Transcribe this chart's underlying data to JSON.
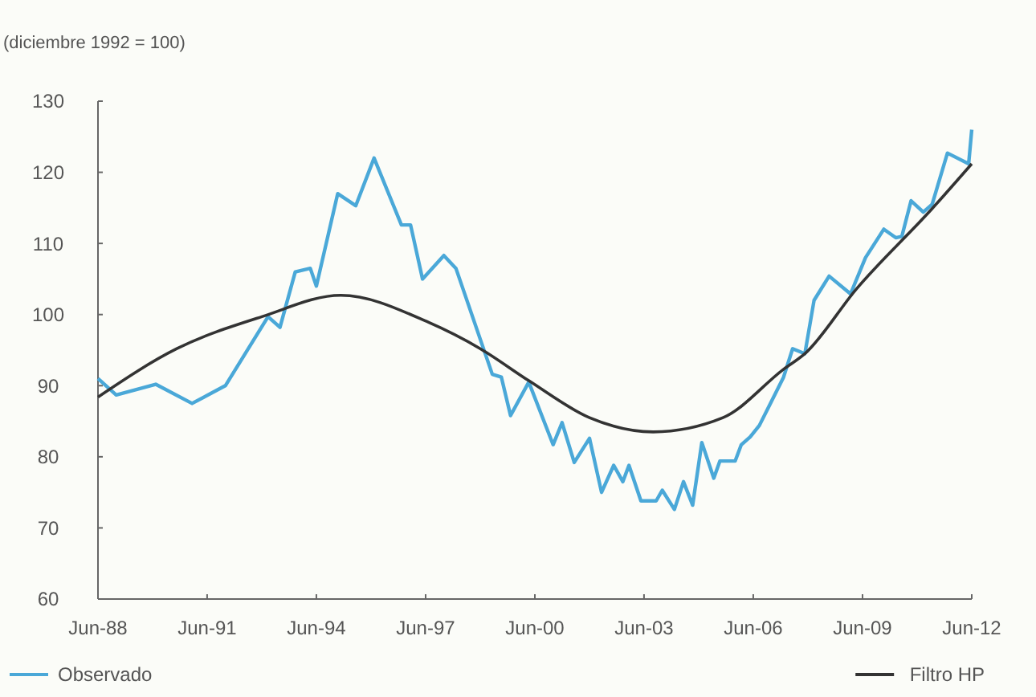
{
  "chart_data": {
    "type": "line",
    "ylabel": "(diciembre 1992 = 100)",
    "xlim": [
      "1988-06",
      "2012-06"
    ],
    "ylim": [
      60,
      130
    ],
    "yticks": [
      60,
      70,
      80,
      90,
      100,
      110,
      120,
      130
    ],
    "xticks": [
      {
        "value": "1988-06",
        "label": "Jun-88"
      },
      {
        "value": "1991-06",
        "label": "Jun-91"
      },
      {
        "value": "1994-06",
        "label": "Jun-94"
      },
      {
        "value": "1997-06",
        "label": "Jun-97"
      },
      {
        "value": "2000-06",
        "label": "Jun-00"
      },
      {
        "value": "2003-06",
        "label": "Jun-03"
      },
      {
        "value": "2006-06",
        "label": "Jun-06"
      },
      {
        "value": "2009-06",
        "label": "Jun-09"
      },
      {
        "value": "2012-06",
        "label": "Jun-12"
      }
    ],
    "grid": false,
    "legend": "bottom",
    "marker": "none",
    "line_style": "solid",
    "series": [
      {
        "name": "Observado",
        "color": "#4aa8d8",
        "x": [
          "1988-06",
          "1988-12",
          "1990-01",
          "1991-01",
          "1991-12",
          "1993-02",
          "1993-06",
          "1993-11",
          "1994-04",
          "1994-06",
          "1995-01",
          "1995-07",
          "1996-01",
          "1996-10",
          "1997-01",
          "1997-05",
          "1997-12",
          "1998-04",
          "1999-04",
          "1999-07",
          "1999-10",
          "2000-04",
          "2000-12",
          "2001-03",
          "2001-07",
          "2001-12",
          "2002-04",
          "2002-08",
          "2002-11",
          "2003-01",
          "2003-05",
          "2003-10",
          "2003-12",
          "2004-04",
          "2004-07",
          "2004-10",
          "2005-01",
          "2005-05",
          "2005-07",
          "2005-12",
          "2006-02",
          "2006-05",
          "2006-08",
          "2006-12",
          "2007-04",
          "2007-07",
          "2007-11",
          "2008-02",
          "2008-07",
          "2009-02",
          "2009-07",
          "2010-01",
          "2010-05",
          "2010-07",
          "2010-10",
          "2011-02",
          "2011-05",
          "2011-10",
          "2012-05",
          "2012-06"
        ],
        "values": [
          91,
          88.7,
          90.2,
          87.5,
          90,
          99.7,
          98.2,
          106,
          106.5,
          104,
          117,
          115.3,
          122,
          112.6,
          112.6,
          105,
          108.3,
          106.5,
          91.6,
          91.2,
          85.8,
          90.5,
          81.7,
          84.8,
          79.2,
          82.6,
          75,
          78.8,
          76.5,
          78.8,
          73.8,
          73.8,
          75.3,
          72.6,
          76.5,
          73.2,
          82,
          77,
          79.4,
          79.4,
          81.7,
          82.8,
          84.4,
          87.8,
          91.2,
          95.2,
          94.5,
          102,
          105.4,
          102.9,
          108,
          112,
          110.8,
          111,
          116,
          114.4,
          115.5,
          122.7,
          121.2,
          126
        ]
      },
      {
        "name": "Filtro HP",
        "color": "#333333",
        "x": [
          "1988-06",
          "1990-08",
          "1992-12",
          "1995-02",
          "1997-07",
          "1998-12",
          "2000-04",
          "2001-12",
          "2003-09",
          "2005-08",
          "2007-04",
          "2007-11",
          "2009-04",
          "2011-05",
          "2012-06"
        ],
        "values": [
          88.4,
          95.2,
          99.7,
          102.7,
          98.9,
          95.2,
          90.7,
          85.5,
          83.5,
          85.5,
          92.3,
          94.5,
          103.6,
          114.9,
          121.2
        ]
      }
    ]
  }
}
